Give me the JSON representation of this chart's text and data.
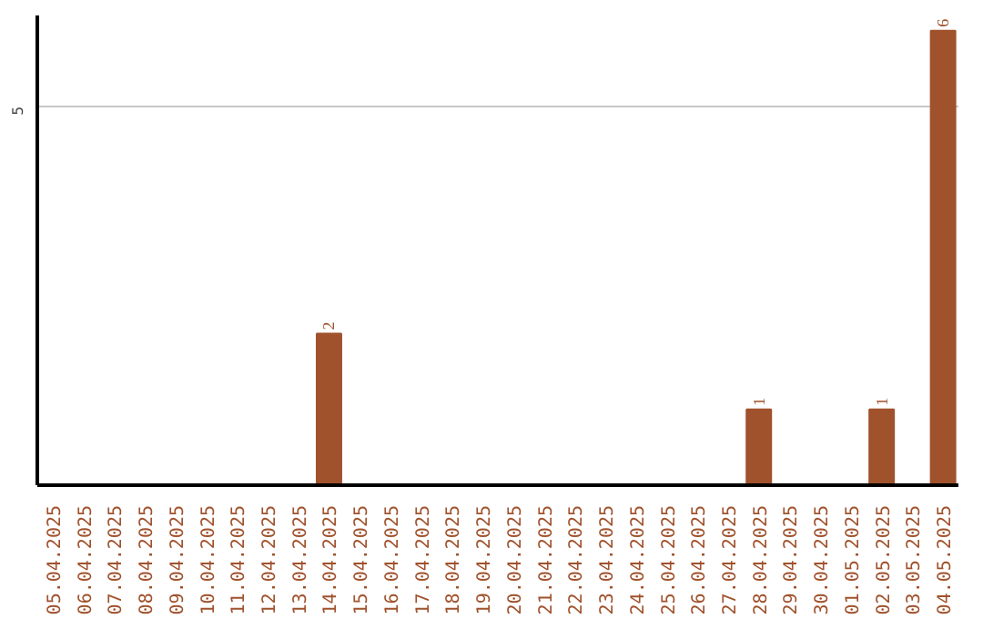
{
  "chart_data": {
    "type": "bar",
    "categories": [
      "05.04.2025",
      "06.04.2025",
      "07.04.2025",
      "08.04.2025",
      "09.04.2025",
      "10.04.2025",
      "11.04.2025",
      "12.04.2025",
      "13.04.2025",
      "14.04.2025",
      "15.04.2025",
      "16.04.2025",
      "17.04.2025",
      "18.04.2025",
      "19.04.2025",
      "20.04.2025",
      "21.04.2025",
      "22.04.2025",
      "23.04.2025",
      "24.04.2025",
      "25.04.2025",
      "26.04.2025",
      "27.04.2025",
      "28.04.2025",
      "29.04.2025",
      "30.04.2025",
      "01.05.2025",
      "02.05.2025",
      "03.05.2025",
      "04.05.2025"
    ],
    "values": [
      0,
      0,
      0,
      0,
      0,
      0,
      0,
      0,
      0,
      2,
      0,
      0,
      0,
      0,
      0,
      0,
      0,
      0,
      0,
      0,
      0,
      0,
      0,
      1,
      0,
      0,
      0,
      1,
      0,
      6
    ],
    "value_labels": [
      null,
      null,
      null,
      null,
      null,
      null,
      null,
      null,
      null,
      "2",
      null,
      null,
      null,
      null,
      null,
      null,
      null,
      null,
      null,
      null,
      null,
      null,
      null,
      "1",
      null,
      null,
      null,
      "1",
      null,
      "6"
    ],
    "color": "#a0522d",
    "ylim": [
      0,
      6.2
    ],
    "yticks": [
      5
    ],
    "grid": "y"
  }
}
